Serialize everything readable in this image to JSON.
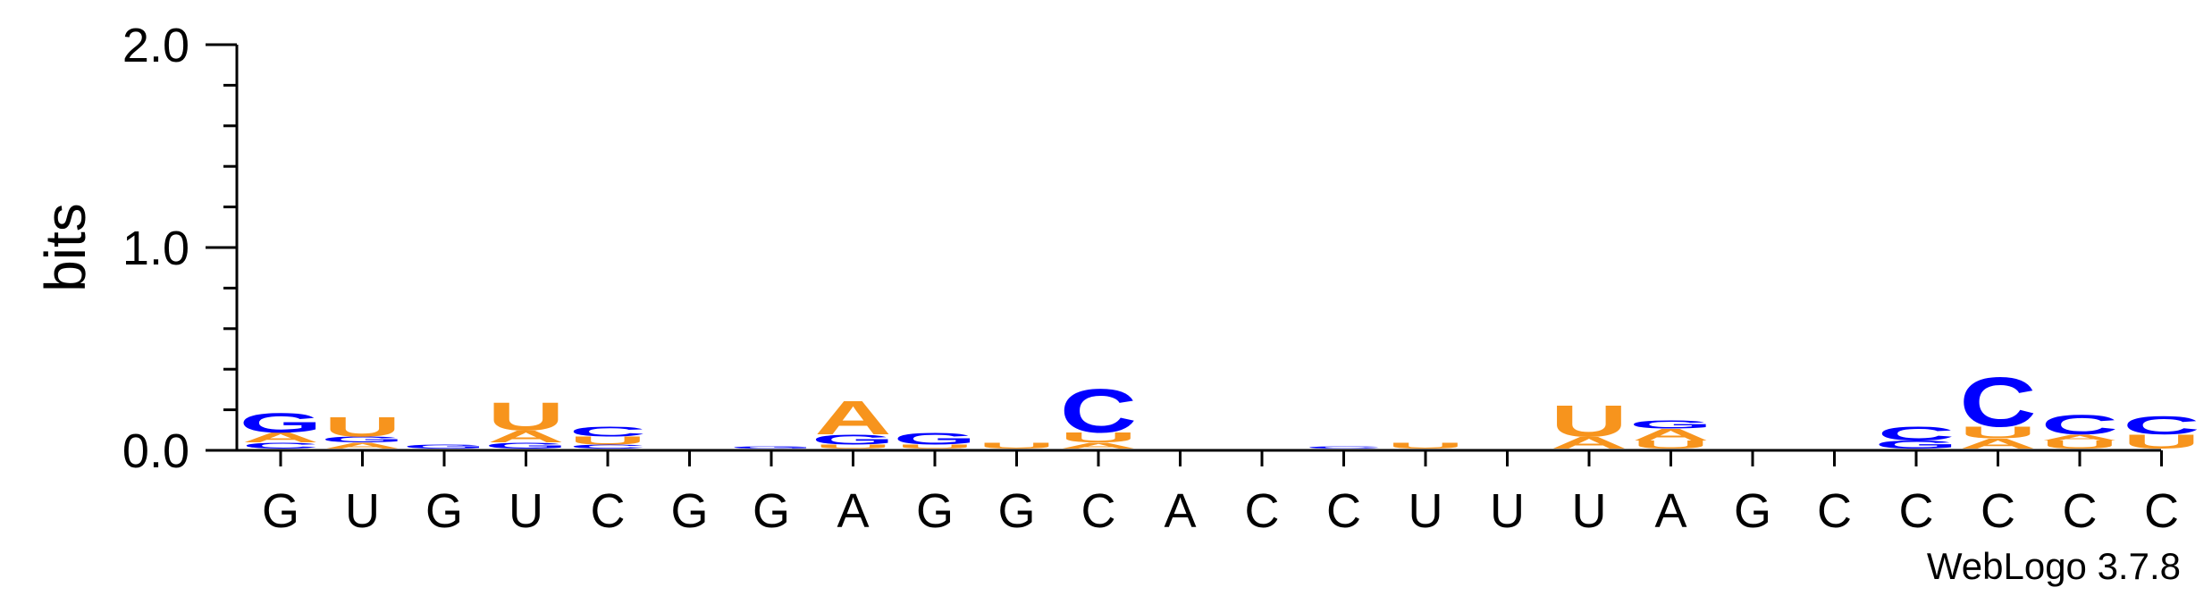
{
  "chart_data": {
    "type": "sequence-logo",
    "ylabel": "bits",
    "ylim": [
      0,
      2.0
    ],
    "yticks": [
      "0.0",
      "1.0",
      "2.0"
    ],
    "credit": "WebLogo 3.7.8",
    "colors": {
      "A": "#f7941d",
      "U": "#f7941d",
      "G": "#0000ff",
      "C": "#0000ff"
    },
    "positions": [
      {
        "label": "G",
        "stack": [
          {
            "l": "C",
            "h": 0.03
          },
          {
            "l": "A",
            "h": 0.05
          },
          {
            "l": "G",
            "h": 0.1
          }
        ]
      },
      {
        "label": "U",
        "stack": [
          {
            "l": "A",
            "h": 0.03
          },
          {
            "l": "G",
            "h": 0.03
          },
          {
            "l": "U",
            "h": 0.1
          }
        ]
      },
      {
        "label": "G",
        "stack": [
          {
            "l": "G",
            "h": 0.02
          }
        ]
      },
      {
        "label": "U",
        "stack": [
          {
            "l": "G",
            "h": 0.03
          },
          {
            "l": "A",
            "h": 0.06
          },
          {
            "l": "U",
            "h": 0.14
          }
        ]
      },
      {
        "label": "C",
        "stack": [
          {
            "l": "C",
            "h": 0.02
          },
          {
            "l": "U",
            "h": 0.04
          },
          {
            "l": "C",
            "h": 0.05
          }
        ]
      },
      {
        "label": "G",
        "stack": []
      },
      {
        "label": "G",
        "stack": [
          {
            "l": "G",
            "h": 0.01
          }
        ]
      },
      {
        "label": "A",
        "stack": [
          {
            "l": "U",
            "h": 0.02
          },
          {
            "l": "G",
            "h": 0.05
          },
          {
            "l": "A",
            "h": 0.17
          }
        ]
      },
      {
        "label": "G",
        "stack": [
          {
            "l": "U",
            "h": 0.02
          },
          {
            "l": "G",
            "h": 0.06
          }
        ]
      },
      {
        "label": "G",
        "stack": [
          {
            "l": "U",
            "h": 0.03
          }
        ]
      },
      {
        "label": "C",
        "stack": [
          {
            "l": "A",
            "h": 0.03
          },
          {
            "l": "U",
            "h": 0.05
          },
          {
            "l": "C",
            "h": 0.22
          }
        ]
      },
      {
        "label": "A",
        "stack": []
      },
      {
        "label": "C",
        "stack": []
      },
      {
        "label": "C",
        "stack": [
          {
            "l": "C",
            "h": 0.01
          }
        ]
      },
      {
        "label": "U",
        "stack": [
          {
            "l": "U",
            "h": 0.03
          }
        ]
      },
      {
        "label": "U",
        "stack": []
      },
      {
        "label": "U",
        "stack": [
          {
            "l": "A",
            "h": 0.06
          },
          {
            "l": "U",
            "h": 0.16
          }
        ]
      },
      {
        "label": "A",
        "stack": [
          {
            "l": "U",
            "h": 0.04
          },
          {
            "l": "A",
            "h": 0.06
          },
          {
            "l": "G",
            "h": 0.04
          }
        ]
      },
      {
        "label": "G",
        "stack": []
      },
      {
        "label": "C",
        "stack": []
      },
      {
        "label": "C",
        "stack": [
          {
            "l": "G",
            "h": 0.04
          },
          {
            "l": "C",
            "h": 0.07
          }
        ]
      },
      {
        "label": "C",
        "stack": [
          {
            "l": "A",
            "h": 0.05
          },
          {
            "l": "U",
            "h": 0.06
          },
          {
            "l": "C",
            "h": 0.25
          }
        ]
      },
      {
        "label": "C",
        "stack": [
          {
            "l": "U",
            "h": 0.04
          },
          {
            "l": "A",
            "h": 0.03
          },
          {
            "l": "C",
            "h": 0.1
          }
        ]
      },
      {
        "label": "C",
        "stack": [
          {
            "l": "U",
            "h": 0.07
          },
          {
            "l": "C",
            "h": 0.09
          }
        ]
      }
    ]
  }
}
